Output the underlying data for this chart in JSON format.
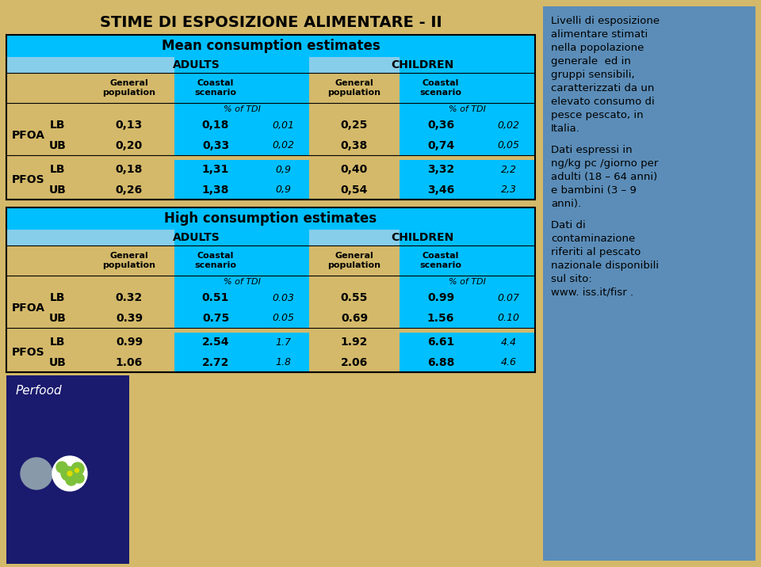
{
  "title": "STIME DI ESPOSIZIONE ALIMENTARE - II",
  "bg_color": "#D4B96A",
  "right_panel_bg": "#5B8DB8",
  "cyan_bg": "#00BFFF",
  "light_blue_bg": "#87CEEB",
  "right_text_para1": "Livelli di esposizione\nalimentare stimati\nnella popolazione\ngenerale  ed in\ngruppi sensibili,\ncaratterizzati da un\nelevato consumo di\npesce pescato, in\nItalia.",
  "right_text_para2": "Dati espressi in\nng/kg pc /giorno per\nadulti (18 – 64 anni)\ne bambini (3 – 9\nanni).",
  "right_text_para3": "Dati di\ncontaminazione\nriferiti al pescato\nnazionale disponibili\nsul sito:\nwww. iss.it/fisr .",
  "section1_header": "Mean consumption estimates",
  "section2_header": "High consumption estimates",
  "adults_label": "ADULTS",
  "children_label": "CHILDREN",
  "col_headers": [
    "General\npopulation",
    "Coastal\nscenario",
    "General\npopulation",
    "Coastal\nscenario"
  ],
  "pct_tdi": "% of TDI",
  "mean_data": {
    "PFOA": {
      "LB": [
        "0,13",
        "0,18",
        "0,01",
        "0,25",
        "0,36",
        "0,02"
      ],
      "UB": [
        "0,20",
        "0,33",
        "0,02",
        "0,38",
        "0,74",
        "0,05"
      ]
    },
    "PFOS": {
      "LB": [
        "0,18",
        "1,31",
        "0,9",
        "0,40",
        "3,32",
        "2,2"
      ],
      "UB": [
        "0,26",
        "1,38",
        "0,9",
        "0,54",
        "3,46",
        "2,3"
      ]
    }
  },
  "high_data": {
    "PFOA": {
      "LB": [
        "0.32",
        "0.51",
        "0.03",
        "0.55",
        "0.99",
        "0.07"
      ],
      "UB": [
        "0.39",
        "0.75",
        "0.05",
        "0.69",
        "1.56",
        "0.10"
      ]
    },
    "PFOS": {
      "LB": [
        "0.99",
        "2.54",
        "1.7",
        "1.92",
        "6.61",
        "4.4"
      ],
      "UB": [
        "1.06",
        "2.72",
        "1.8",
        "2.06",
        "6.88",
        "4.6"
      ]
    }
  },
  "perfood_bg": "#1A1A6E",
  "perfood_text_color": "#FFFFFF"
}
